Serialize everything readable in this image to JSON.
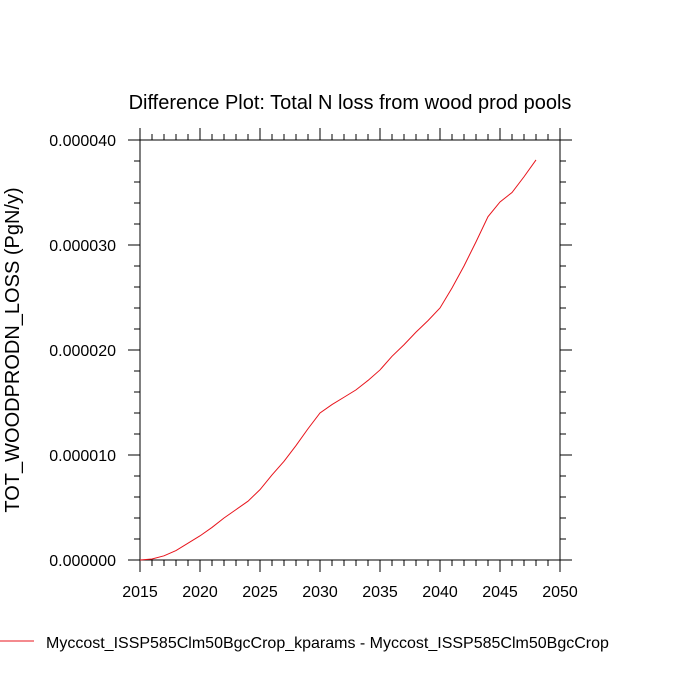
{
  "chart_data": {
    "type": "line",
    "title": "Difference Plot: Total N loss from wood prod pools",
    "xlabel": "",
    "ylabel": "TOT_WOODPRODN_LOSS  (PgN/y)",
    "xlim": [
      2015,
      2050
    ],
    "ylim": [
      0,
      4e-05
    ],
    "xticks": [
      "2015",
      "2020",
      "2025",
      "2030",
      "2035",
      "2040",
      "2045",
      "2050"
    ],
    "yticks": [
      "0.000000",
      "0.000010",
      "0.000020",
      "0.000030",
      "0.000040"
    ],
    "grid": false,
    "legend_position": "bottom",
    "series": [
      {
        "name": "Myccost_ISSP585Clm50BgcCrop_kparams - Myccost_ISSP585Clm50BgcCrop",
        "color": "#e8141c",
        "x": [
          2015,
          2016,
          2017,
          2018,
          2019,
          2020,
          2021,
          2022,
          2023,
          2024,
          2025,
          2026,
          2027,
          2028,
          2029,
          2030,
          2031,
          2032,
          2033,
          2034,
          2035,
          2036,
          2037,
          2038,
          2039,
          2040,
          2041,
          2042,
          2043,
          2044,
          2045,
          2046,
          2047,
          2048
        ],
        "values": [
          0.0,
          1e-07,
          4e-07,
          9e-07,
          1.6e-06,
          2.3e-06,
          3.1e-06,
          4e-06,
          4.8e-06,
          5.6e-06,
          6.7e-06,
          8.1e-06,
          9.4e-06,
          1.09e-05,
          1.25e-05,
          1.4e-05,
          1.48e-05,
          1.55e-05,
          1.62e-05,
          1.71e-05,
          1.81e-05,
          1.94e-05,
          2.05e-05,
          2.17e-05,
          2.28e-05,
          2.4e-05,
          2.59e-05,
          2.8e-05,
          3.03e-05,
          3.27e-05,
          3.41e-05,
          3.5e-05,
          3.65e-05,
          3.81e-05
        ]
      }
    ]
  }
}
